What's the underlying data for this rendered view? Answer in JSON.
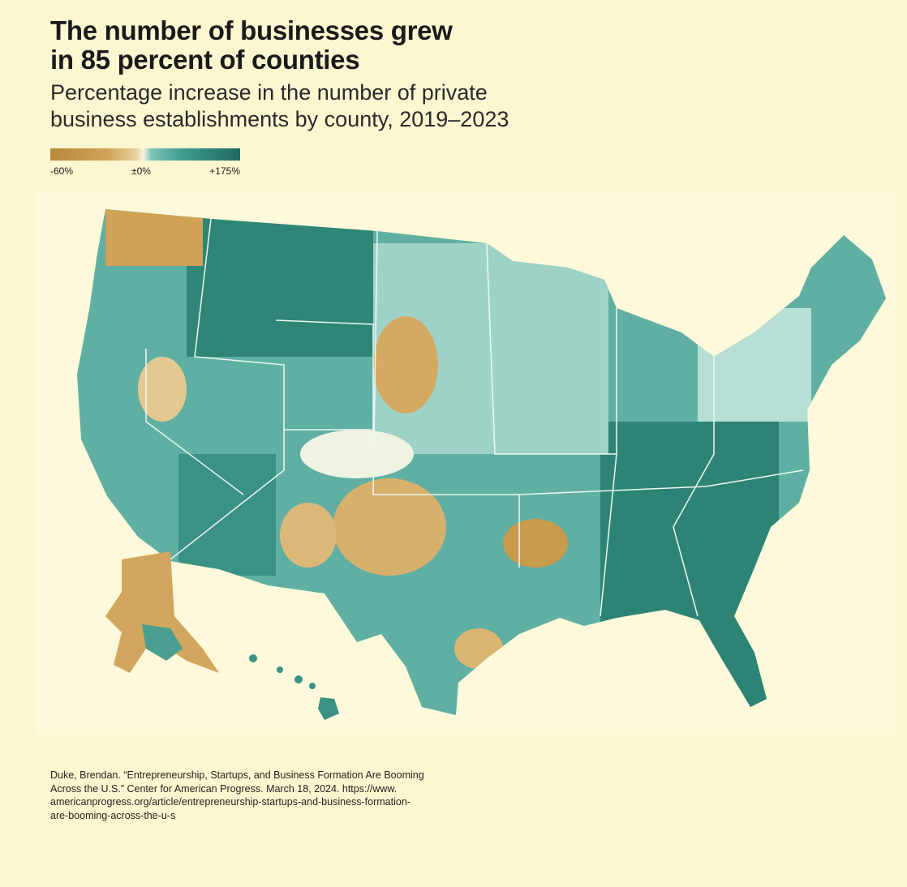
{
  "header": {
    "title": [
      "The number of businesses grew",
      "in 85 percent of counties"
    ],
    "subtitle": [
      "Percentage increase in the number of private",
      "business establishments by county, 2019–2023"
    ]
  },
  "legend": {
    "labels": [
      "-60%",
      "±0%",
      "+175%"
    ]
  },
  "source": [
    "Duke, Brendan. “Entrepreneurship, Startups, and Business Formation Are Booming",
    "Across the U.S.” Center for American Progress. March 18, 2024. https://www.",
    "americanprogress.org/article/entrepreneurship-startups-and-business-formation-",
    "are-booming-across-the-u-s"
  ]
}
